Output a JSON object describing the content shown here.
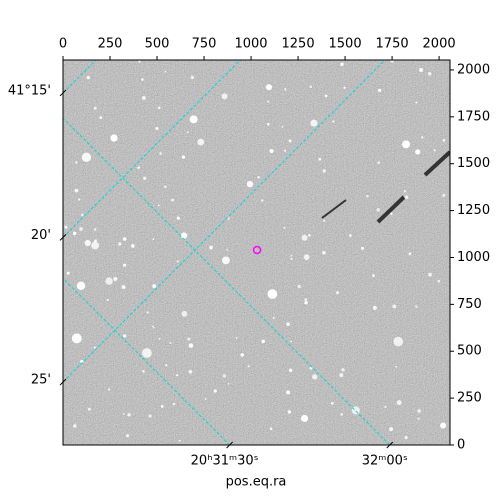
{
  "chart_data": {
    "type": "image",
    "xlabel": "pos.eq.ra",
    "xlim": [
      0,
      2058
    ],
    "xticks": [
      0,
      250,
      500,
      750,
      1000,
      1250,
      1500,
      1750,
      2000
    ],
    "ylim": [
      0,
      2053
    ],
    "yticks": [
      0,
      250,
      500,
      750,
      1000,
      1250,
      1500,
      1750,
      2000
    ],
    "ralim": [
      307.745,
      308.047
    ],
    "raticks": [
      {
        "value": 307.875,
        "label": "20ʰ31ᵐ30ˢ"
      },
      {
        "value": 308.0,
        "label": "32ᵐ00ˢ"
      }
    ],
    "declim": [
      41.231,
      41.453
    ],
    "decticks": [
      {
        "value": 41.25,
        "label": "41°15'"
      },
      {
        "value": 41.3333,
        "label": "20'"
      },
      {
        "value": 41.4167,
        "label": "25'"
      }
    ],
    "grid": true,
    "grid_color": "#00d8d8",
    "markers": {
      "color": "#ff00ff",
      "x": [
        1032
      ],
      "y": [
        1040
      ]
    }
  }
}
